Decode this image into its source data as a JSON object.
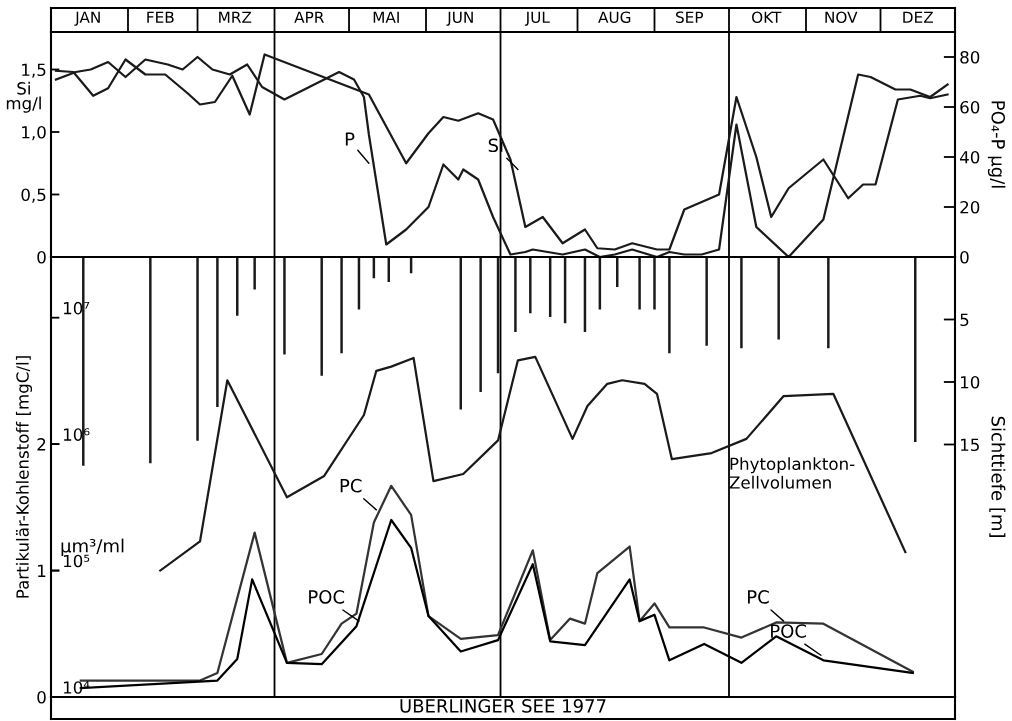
{
  "chart_data": [
    {
      "type": "line",
      "ylabel": "Si\nmg/l",
      "y2label": "PO₄-P µg/l",
      "xlim": [
        "1977-01-01",
        "1977-12-31"
      ],
      "xticks": [
        {
          "value": "1977-01-16",
          "label": "JAN"
        },
        {
          "value": "1977-02-01",
          "label": null
        },
        {
          "value": "1977-02-14",
          "label": "FEB"
        },
        {
          "value": "1977-03-01",
          "label": null
        },
        {
          "value": "1977-03-16",
          "label": "MRZ"
        },
        {
          "value": "1977-04-01",
          "label": null
        },
        {
          "value": "1977-04-15",
          "label": "APR"
        },
        {
          "value": "1977-05-01",
          "label": null
        },
        {
          "value": "1977-05-16",
          "label": "MAI"
        },
        {
          "value": "1977-06-01",
          "label": null
        },
        {
          "value": "1977-06-15",
          "label": "JUN"
        },
        {
          "value": "1977-07-01",
          "label": null
        },
        {
          "value": "1977-07-16",
          "label": "JUL"
        },
        {
          "value": "1977-08-01",
          "label": null
        },
        {
          "value": "1977-08-16",
          "label": "AUG"
        },
        {
          "value": "1977-09-01",
          "label": null
        },
        {
          "value": "1977-09-15",
          "label": "SEP"
        },
        {
          "value": "1977-10-01",
          "label": null
        },
        {
          "value": "1977-10-16",
          "label": "OKT"
        },
        {
          "value": "1977-11-01",
          "label": null
        },
        {
          "value": "1977-11-15",
          "label": "NOV"
        },
        {
          "value": "1977-12-01",
          "label": null
        },
        {
          "value": "1977-12-16",
          "label": "DEZ"
        }
      ],
      "ylim": [
        0,
        1.8
      ],
      "yticks": [
        0,
        {
          "value": 0.5,
          "label": "0,5"
        },
        {
          "value": 1.0,
          "label": "1,0"
        },
        {
          "value": 1.5,
          "label": "1,5"
        }
      ],
      "y2lim": [
        0,
        90
      ],
      "y2ticks": [
        0,
        20,
        40,
        60,
        80
      ],
      "ref_lines": [
        {
          "axis": "x",
          "value": "1977-04-01",
          "color": "#000000"
        },
        {
          "axis": "x",
          "value": "1977-07-01",
          "color": "#000000"
        },
        {
          "axis": "x",
          "value": "1977-10-01",
          "color": "#000000"
        }
      ],
      "annotations": [
        {
          "text": "P",
          "x": "1977-05-09",
          "y": 0.75
        },
        {
          "text": "Si",
          "x": "1977-07-08",
          "y": 0.7
        }
      ],
      "series": [
        {
          "color": "#1a1a1a",
          "x": [
            "1977-01-03",
            "1977-01-10",
            "1977-01-18",
            "1977-01-24",
            "1977-01-31",
            "1977-02-08",
            "1977-02-16",
            "1977-02-25",
            "1977-03-02",
            "1977-03-08",
            "1977-03-15",
            "1977-03-22",
            "1977-03-28",
            "1977-05-09",
            "1977-05-24",
            "1977-06-02",
            "1977-06-08",
            "1977-06-14",
            "1977-06-22",
            "1977-06-28",
            "1977-07-05",
            "1977-07-11",
            "1977-07-18",
            "1977-07-26",
            "1977-08-04",
            "1977-08-09",
            "1977-08-16",
            "1977-08-23",
            "1977-09-02",
            "1977-09-07",
            "1977-09-13",
            "1977-09-27",
            "1977-10-04",
            "1977-10-12",
            "1977-10-18",
            "1977-10-25",
            "1977-11-08",
            "1977-11-18",
            "1977-11-24",
            "1977-11-29",
            "1977-12-08",
            "1977-12-17",
            "1977-12-21",
            "1977-12-28"
          ],
          "values": [
            1.49,
            1.48,
            1.29,
            1.35,
            1.58,
            1.46,
            1.46,
            1.31,
            1.22,
            1.24,
            1.45,
            1.14,
            1.62,
            1.3,
            0.75,
            0.99,
            1.12,
            1.09,
            1.15,
            1.1,
            0.78,
            0.24,
            0.32,
            0.11,
            0.22,
            0.07,
            0.06,
            0.11,
            0.06,
            0.06,
            0.38,
            0.5,
            1.28,
            0.8,
            0.32,
            0.55,
            0.78,
            0.47,
            0.58,
            0.58,
            1.26,
            1.29,
            1.27,
            1.3
          ]
        },
        {
          "color": "#1a1a1a",
          "axis": "y2",
          "x": [
            "1977-01-03",
            "1977-01-11",
            "1977-01-17",
            "1977-01-24",
            "1977-01-31",
            "1977-02-08",
            "1977-02-17",
            "1977-02-23",
            "1977-03-01",
            "1977-03-07",
            "1977-03-14",
            "1977-03-21",
            "1977-03-27",
            "1977-04-05",
            "1977-04-27",
            "1977-05-03",
            "1977-05-07",
            "1977-05-09",
            "1977-05-16",
            "1977-05-24",
            "1977-06-02",
            "1977-06-08",
            "1977-06-14",
            "1977-06-16",
            "1977-06-22",
            "1977-06-28",
            "1977-07-05",
            "1977-07-11",
            "1977-07-14",
            "1977-07-20",
            "1977-07-26",
            "1977-08-04",
            "1977-08-10",
            "1977-08-16",
            "1977-08-23",
            "1977-09-02",
            "1977-09-07",
            "1977-09-13",
            "1977-09-20",
            "1977-09-27",
            "1977-10-04",
            "1977-10-12",
            "1977-10-25",
            "1977-11-08",
            "1977-11-22",
            "1977-11-27",
            "1977-12-07",
            "1977-12-13",
            "1977-12-21",
            "1977-12-28"
          ],
          "values": [
            71,
            74,
            75,
            78,
            72,
            79,
            77,
            75,
            80,
            75,
            73,
            77,
            68,
            63,
            74,
            71,
            64,
            49,
            5,
            11,
            20,
            37,
            31,
            35,
            31,
            16,
            1,
            2,
            3,
            2,
            1,
            3,
            0,
            1,
            3,
            0,
            2,
            1,
            1,
            3,
            53,
            12,
            0,
            15,
            73,
            72,
            67,
            67,
            64,
            69
          ]
        }
      ]
    },
    {
      "type": "line",
      "xlabel": "ÜBERLINGER SEE 1977",
      "ylabel": "Partikulär-Kohlenstoff [mgC/l]",
      "y2label": "Sichttiefe [m]",
      "y3label": "µm³/ml",
      "log": "y3",
      "xlim": [
        "1977-01-01",
        "1977-12-31"
      ],
      "tick_labels": "y",
      "ylim": [
        0,
        3.48
      ],
      "yticks": [
        0,
        1,
        2
      ],
      "y2lim": [
        35.2,
        0
      ],
      "y2ticks": [
        {
          "value": 0,
          "label": null
        },
        5,
        10,
        15
      ],
      "y3lim": [
        10000,
        30200000
      ],
      "y3ticks": [
        {
          "value": 10000,
          "label": "10⁴"
        },
        {
          "value": 100000,
          "label": "10⁵"
        },
        {
          "value": 1000000,
          "label": "10⁶"
        },
        {
          "value": 10000000,
          "label": "10⁷"
        }
      ],
      "ref_lines": [
        {
          "axis": "x",
          "value": "1977-04-01",
          "color": "#000000"
        },
        {
          "axis": "x",
          "value": "1977-07-01",
          "color": "#000000"
        },
        {
          "axis": "x",
          "value": "1977-10-01",
          "color": "#000000"
        }
      ],
      "annotations": [
        {
          "text": "PC",
          "x": "1977-05-12",
          "y": 1.48
        },
        {
          "text": "POC",
          "x": "1977-05-05",
          "y": 0.6
        },
        {
          "text": "PC",
          "x": "1977-10-23",
          "y": 0.6
        },
        {
          "text": "POC",
          "x": "1977-11-07",
          "y": 0.33
        },
        "Phytoplankton-\nZellvolumen"
      ],
      "series": [
        {
          "type": "bar",
          "axis": "y2",
          "color": "#1a1a1a",
          "x": [
            "1977-01-14",
            "1977-02-10",
            "1977-03-01",
            "1977-03-09",
            "1977-03-17",
            "1977-03-24",
            "1977-04-05",
            "1977-04-20",
            "1977-04-28",
            "1977-05-05",
            "1977-05-11",
            "1977-05-17",
            "1977-05-26",
            "1977-06-15",
            "1977-06-23",
            "1977-06-30",
            "1977-07-07",
            "1977-07-13",
            "1977-07-21",
            "1977-07-27",
            "1977-08-04",
            "1977-08-10",
            "1977-08-17",
            "1977-08-26",
            "1977-09-01",
            "1977-09-07",
            "1977-09-22",
            "1977-10-06",
            "1977-10-21",
            "1977-11-10",
            "1977-12-15"
          ],
          "values": [
            16.7,
            16.5,
            14.7,
            12.0,
            4.7,
            2.6,
            7.8,
            9.5,
            7.7,
            4.2,
            1.7,
            2.0,
            1.3,
            12.2,
            10.8,
            9.3,
            6.0,
            4.5,
            4.8,
            5.3,
            6.0,
            4.2,
            2.4,
            4.2,
            4.2,
            7.7,
            7.1,
            7.3,
            6.6,
            7.3,
            14.8
          ]
        },
        {
          "axis": "y3",
          "color": "#1a1a1a",
          "x": [
            "1977-02-14",
            "1977-03-02",
            "1977-03-13",
            "1977-04-06",
            "1977-04-21",
            "1977-05-07",
            "1977-05-12",
            "1977-05-18",
            "1977-05-27",
            "1977-06-04",
            "1977-06-16",
            "1977-06-30",
            "1977-07-08",
            "1977-07-15",
            "1977-07-30",
            "1977-08-05",
            "1977-08-13",
            "1977-08-19",
            "1977-08-28",
            "1977-09-02",
            "1977-09-08",
            "1977-09-24",
            "1977-10-08",
            "1977-10-23",
            "1977-11-12",
            "1977-12-11"
          ],
          "values": [
            100000,
            170000,
            3200000,
            380000,
            560000,
            1700000,
            3800000,
            4100000,
            4800000,
            510000,
            580000,
            1070000,
            4600000,
            4900000,
            1100000,
            2000000,
            3000000,
            3200000,
            3000000,
            2500000,
            760000,
            850000,
            1100000,
            2400000,
            2500000,
            140000
          ]
        },
        {
          "color": "#333333",
          "x": [
            "1977-01-13",
            "1977-03-02",
            "1977-03-09",
            "1977-03-24",
            "1977-04-06",
            "1977-04-20",
            "1977-04-28",
            "1977-05-04",
            "1977-05-11",
            "1977-05-18",
            "1977-05-26",
            "1977-06-02",
            "1977-06-15",
            "1977-06-30",
            "1977-07-14",
            "1977-07-21",
            "1977-07-29",
            "1977-08-04",
            "1977-08-09",
            "1977-08-22",
            "1977-08-26",
            "1977-09-01",
            "1977-09-07",
            "1977-09-21",
            "1977-10-06",
            "1977-10-20",
            "1977-11-08",
            "1977-12-14"
          ],
          "values": [
            0.13,
            0.13,
            0.19,
            1.3,
            0.27,
            0.34,
            0.58,
            0.66,
            1.38,
            1.67,
            1.44,
            0.64,
            0.46,
            0.49,
            1.16,
            0.45,
            0.62,
            0.58,
            0.98,
            1.19,
            0.6,
            0.74,
            0.55,
            0.55,
            0.47,
            0.59,
            0.58,
            0.2
          ]
        },
        {
          "color": "#000000",
          "x": [
            "1977-01-13",
            "1977-03-09",
            "1977-03-17",
            "1977-03-23",
            "1977-04-06",
            "1977-04-20",
            "1977-05-04",
            "1977-05-18",
            "1977-05-26",
            "1977-06-02",
            "1977-06-15",
            "1977-06-30",
            "1977-07-14",
            "1977-07-21",
            "1977-08-04",
            "1977-08-22",
            "1977-08-26",
            "1977-09-01",
            "1977-09-07",
            "1977-09-21",
            "1977-10-06",
            "1977-10-20",
            "1977-11-08",
            "1977-12-14"
          ],
          "values": [
            0.07,
            0.13,
            0.3,
            0.93,
            0.27,
            0.26,
            0.56,
            1.4,
            1.18,
            0.64,
            0.36,
            0.45,
            1.05,
            0.44,
            0.41,
            0.93,
            0.6,
            0.65,
            0.29,
            0.42,
            0.27,
            0.48,
            0.29,
            0.19
          ]
        }
      ]
    }
  ]
}
